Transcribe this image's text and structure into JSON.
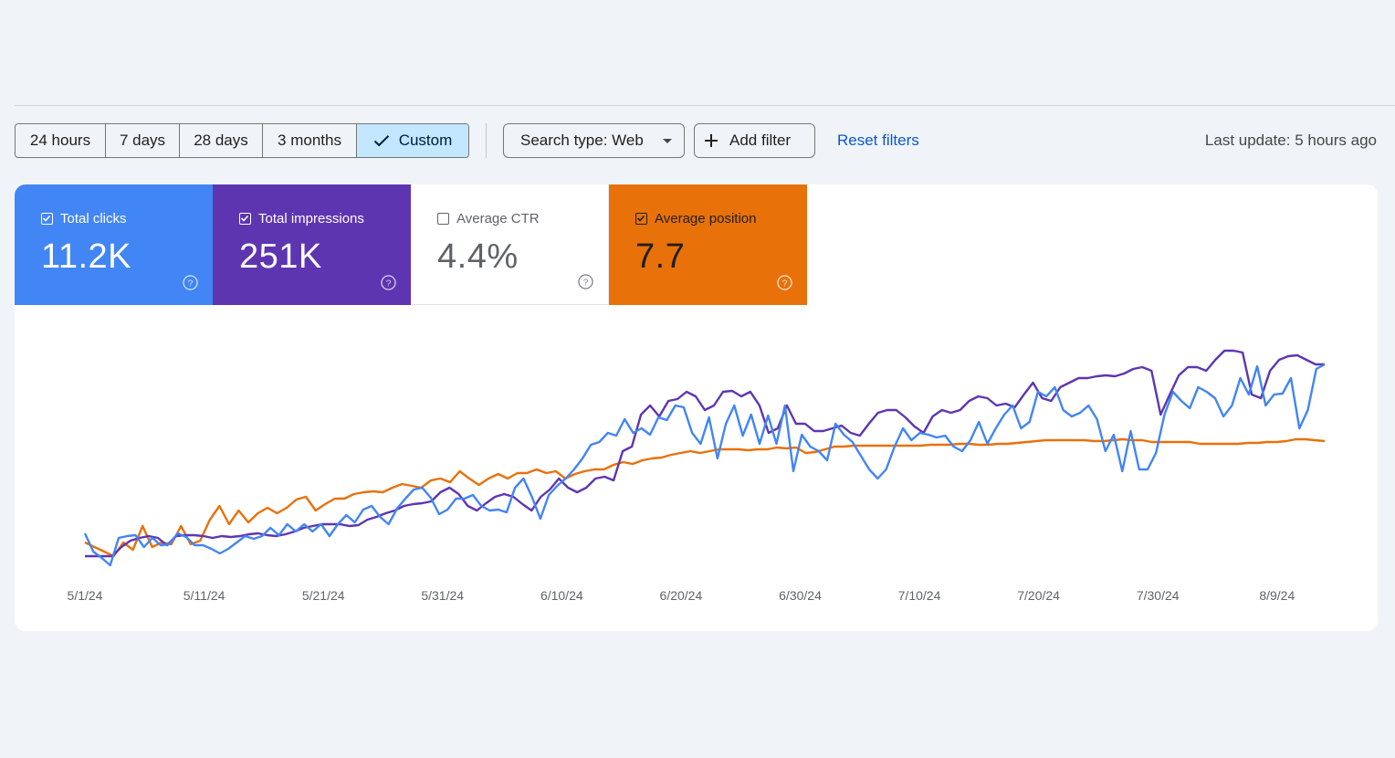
{
  "toolbar": {
    "ranges": [
      {
        "label": "24 hours",
        "selected": false
      },
      {
        "label": "7 days",
        "selected": false
      },
      {
        "label": "28 days",
        "selected": false
      },
      {
        "label": "3 months",
        "selected": false
      },
      {
        "label": "Custom",
        "selected": true
      }
    ],
    "search_type": "Search type: Web",
    "add_filter": "Add filter",
    "reset_filters": "Reset filters",
    "last_update": "Last update: 5 hours ago"
  },
  "metrics": [
    {
      "label": "Total clicks",
      "value": "11.2K",
      "checked": true,
      "color": "#4285f4"
    },
    {
      "label": "Total impressions",
      "value": "251K",
      "checked": true,
      "color": "#5e35b1"
    },
    {
      "label": "Average CTR",
      "value": "4.4%",
      "checked": false,
      "color": "#ffffff"
    },
    {
      "label": "Average position",
      "value": "7.7",
      "checked": true,
      "color": "#e8710a"
    }
  ],
  "chart_data": {
    "type": "line",
    "x_tick_labels": [
      "5/1/24",
      "5/11/24",
      "5/21/24",
      "5/31/24",
      "6/10/24",
      "6/20/24",
      "6/30/24",
      "7/10/24",
      "7/20/24",
      "7/30/24",
      "8/9/24"
    ],
    "x_start": "5/1/24",
    "x_end": "8/13/24",
    "y_axis_shown": false,
    "grid": false,
    "series": [
      {
        "name": "Total clicks",
        "color": "#4285f4",
        "values": [
          30,
          10,
          3,
          -5,
          25,
          27,
          28,
          15,
          25,
          17,
          18,
          30,
          26,
          17,
          17,
          13,
          8,
          13,
          20,
          27,
          24,
          27,
          36,
          28,
          40,
          32,
          40,
          32,
          40,
          27,
          40,
          50,
          42,
          56,
          60,
          48,
          40,
          57,
          68,
          78,
          80,
          69,
          51,
          56,
          68,
          68,
          72,
          60,
          55,
          56,
          53,
          80,
          90,
          70,
          46,
          72,
          82,
          90,
          100,
          112,
          127,
          130,
          140,
          137,
          155,
          140,
          145,
          138,
          157,
          154,
          170,
          168,
          140,
          128,
          157,
          112,
          150,
          170,
          137,
          160,
          128,
          159,
          128,
          170,
          98,
          138,
          125,
          120,
          110,
          150,
          138,
          130,
          115,
          100,
          90,
          100,
          125,
          145,
          132,
          140,
          138,
          135,
          137,
          125,
          120,
          132,
          152,
          128,
          145,
          160,
          170,
          145,
          152,
          185,
          180,
          190,
          165,
          158,
          162,
          170,
          155,
          120,
          138,
          98,
          142,
          100,
          100,
          118,
          160,
          185,
          175,
          167,
          190,
          185,
          178,
          158,
          170,
          200,
          182,
          213,
          170,
          182,
          183,
          200,
          145,
          165,
          210,
          215
        ]
      },
      {
        "name": "Total impressions",
        "color": "#5e35b1",
        "values": [
          5,
          5,
          5,
          5,
          15,
          22,
          25,
          27,
          25,
          17,
          27,
          28,
          28,
          27,
          25,
          27,
          26,
          27,
          29,
          30,
          28,
          27,
          29,
          32,
          36,
          38,
          40,
          40,
          40,
          38,
          39,
          45,
          48,
          52,
          55,
          60,
          62,
          63,
          65,
          75,
          80,
          73,
          60,
          55,
          63,
          70,
          73,
          70,
          62,
          55,
          70,
          78,
          90,
          80,
          75,
          80,
          90,
          92,
          88,
          120,
          125,
          160,
          170,
          158,
          175,
          177,
          185,
          180,
          165,
          170,
          185,
          186,
          180,
          185,
          170,
          140,
          145,
          170,
          150,
          150,
          142,
          142,
          145,
          148,
          140,
          137,
          150,
          162,
          165,
          165,
          157,
          147,
          140,
          158,
          165,
          162,
          165,
          175,
          180,
          178,
          170,
          172,
          168,
          182,
          195,
          178,
          175,
          190,
          195,
          200,
          200,
          202,
          203,
          202,
          205,
          210,
          212,
          208,
          160,
          182,
          203,
          212,
          212,
          208,
          220,
          230,
          230,
          228,
          182,
          178,
          208,
          220,
          224,
          225,
          220,
          215,
          215
        ]
      },
      {
        "name": "Average position",
        "color": "#e8710a",
        "values": [
          20,
          15,
          10,
          5,
          20,
          12,
          38,
          15,
          20,
          18,
          38,
          18,
          22,
          45,
          60,
          40,
          55,
          42,
          52,
          58,
          52,
          58,
          67,
          70,
          55,
          62,
          68,
          68,
          73,
          75,
          76,
          75,
          80,
          84,
          82,
          80,
          88,
          90,
          86,
          98,
          90,
          83,
          90,
          95,
          90,
          96,
          96,
          100,
          96,
          98,
          90,
          95,
          98,
          100,
          100,
          105,
          108,
          106,
          110,
          112,
          113,
          116,
          118,
          120,
          118,
          120,
          122,
          122,
          122,
          121,
          122,
          122,
          124,
          123,
          124,
          118,
          119,
          122,
          125,
          125,
          126,
          126,
          126,
          126,
          126,
          126,
          126,
          126,
          127,
          127,
          127,
          128,
          128,
          127,
          127,
          128,
          128,
          129,
          130,
          131,
          132,
          132,
          132,
          132,
          132,
          131,
          131,
          132,
          133,
          132,
          132,
          130,
          130,
          130,
          130,
          130,
          128,
          128,
          128,
          128,
          128,
          129,
          129,
          130,
          130,
          131,
          133,
          133,
          132,
          131
        ]
      }
    ]
  }
}
